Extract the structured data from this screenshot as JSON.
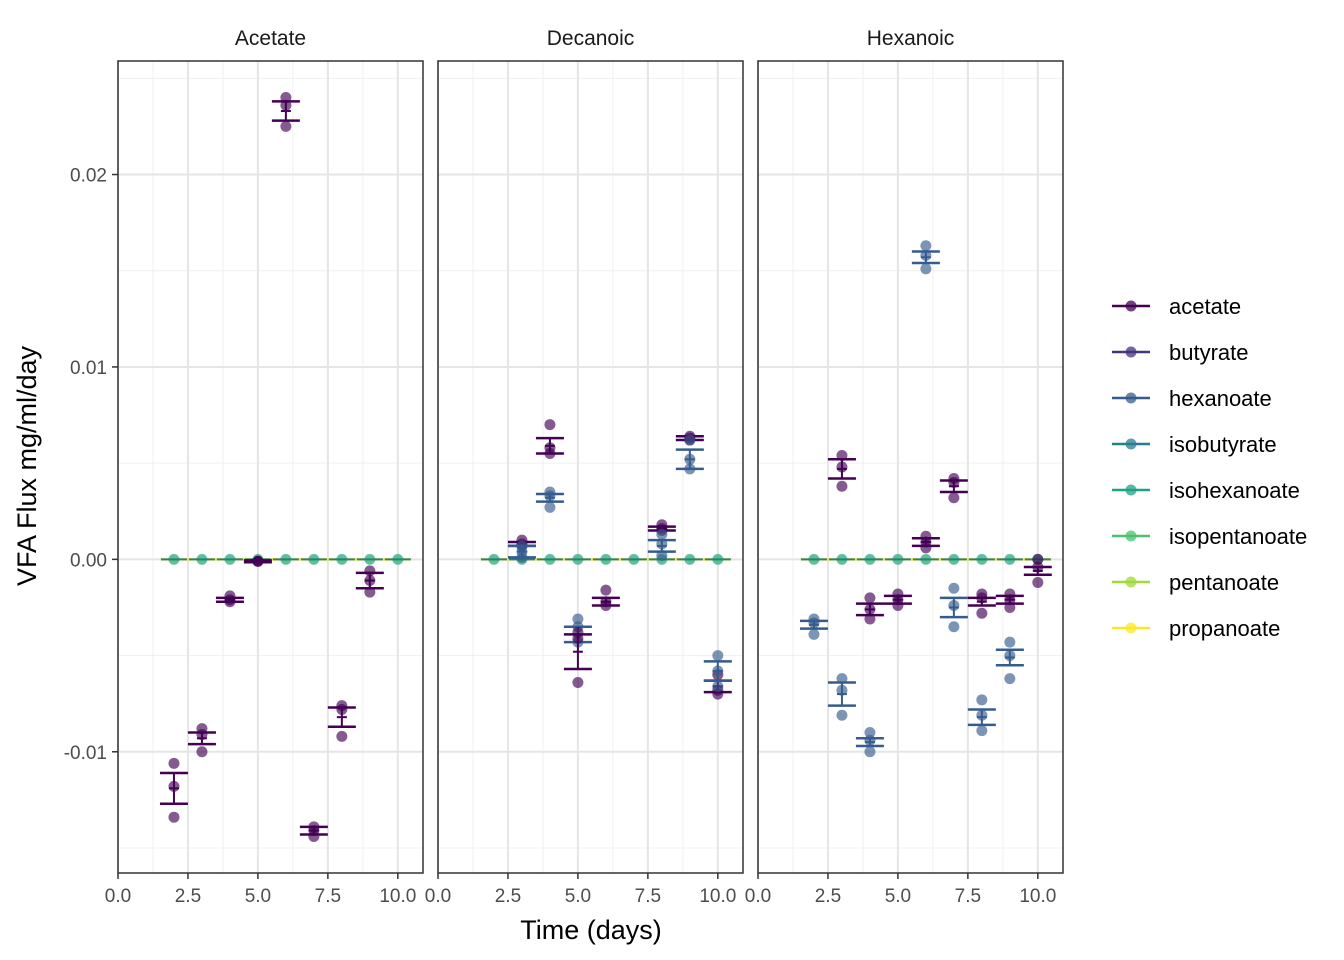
{
  "chart_data": {
    "type": "scatter",
    "xlabel": "Time (days)",
    "ylabel": "VFA Flux mg/ml/day",
    "xlim": [
      0,
      10.9
    ],
    "ylim": [
      -0.0163,
      0.0259
    ],
    "x_ticks": [
      0,
      2.5,
      5,
      7.5,
      10
    ],
    "x_tick_labels": [
      "0.0",
      "2.5",
      "5.0",
      "7.5",
      "10.0"
    ],
    "y_ticks": [
      -0.01,
      0,
      0.01,
      0.02
    ],
    "y_tick_labels": [
      "-0.01",
      "0.00",
      "0.01",
      "0.02"
    ],
    "grid": true,
    "legend_position": "right",
    "legend": [
      {
        "name": "acetate",
        "color": "#440154"
      },
      {
        "name": "butyrate",
        "color": "#46337E"
      },
      {
        "name": "hexanoate",
        "color": "#365C8D"
      },
      {
        "name": "isobutyrate",
        "color": "#277F8E"
      },
      {
        "name": "isohexanoate",
        "color": "#1FA187"
      },
      {
        "name": "isopentanoate",
        "color": "#4AC16D"
      },
      {
        "name": "pentanoate",
        "color": "#9FDA3A"
      },
      {
        "name": "propanoate",
        "color": "#FDE725"
      }
    ],
    "panels": [
      {
        "title": "Acetate",
        "zero_series_x": [
          2,
          3,
          4,
          5,
          6,
          7,
          8,
          9,
          10
        ],
        "series": [
          {
            "name": "acetate",
            "points": [
              {
                "x": 2,
                "mean": -0.0119,
                "se": 0.0008,
                "obs": [
                  -0.0106,
                  -0.0118,
                  -0.0134
                ]
              },
              {
                "x": 3,
                "mean": -0.0093,
                "se": 0.0003,
                "obs": [
                  -0.0088,
                  -0.0091,
                  -0.01
                ]
              },
              {
                "x": 4,
                "mean": -0.0021,
                "se": 0.0001,
                "obs": [
                  -0.0019,
                  -0.0021,
                  -0.0022
                ]
              },
              {
                "x": 5,
                "mean": -0.0001,
                "se": 5e-05,
                "obs": [
                  -0.0001,
                  -0.0001,
                  -0.0001
                ]
              },
              {
                "x": 6,
                "mean": 0.0233,
                "se": 0.0005,
                "obs": [
                  0.024,
                  0.0236,
                  0.0225
                ]
              },
              {
                "x": 7,
                "mean": -0.0141,
                "se": 0.0002,
                "obs": [
                  -0.0139,
                  -0.0141,
                  -0.0144
                ]
              },
              {
                "x": 8,
                "mean": -0.0082,
                "se": 0.0005,
                "obs": [
                  -0.0076,
                  -0.0078,
                  -0.0092
                ]
              },
              {
                "x": 9,
                "mean": -0.0011,
                "se": 0.0004,
                "obs": [
                  -0.0006,
                  -0.0011,
                  -0.0017
                ]
              }
            ]
          }
        ]
      },
      {
        "title": "Decanoic",
        "zero_series_x": [
          2,
          3,
          4,
          5,
          6,
          7,
          8,
          9,
          10
        ],
        "series": [
          {
            "name": "acetate",
            "points": [
              {
                "x": 3,
                "mean": 0.0008,
                "se": 0.0001,
                "obs": [
                  0.001,
                  0.0008,
                  0.0007
                ]
              },
              {
                "x": 4,
                "mean": 0.0059,
                "se": 0.0004,
                "obs": [
                  0.007,
                  0.0058,
                  0.0055
                ]
              },
              {
                "x": 6,
                "mean": -0.0022,
                "se": 0.0002,
                "obs": [
                  -0.0016,
                  -0.0022,
                  -0.0024
                ]
              },
              {
                "x": 8,
                "mean": 0.0016,
                "se": 0.0001,
                "obs": [
                  0.0018,
                  0.0016,
                  0.0015
                ]
              },
              {
                "x": 9,
                "mean": 0.0063,
                "se": 0.0001,
                "obs": [
                  0.0064,
                  0.0063,
                  0.0062
                ]
              },
              {
                "x": 10,
                "mean": -0.0066,
                "se": 0.0003,
                "obs": [
                  -0.006,
                  -0.0068,
                  -0.007
                ]
              }
            ]
          },
          {
            "name": "hexanoate",
            "points": [
              {
                "x": 3,
                "mean": 0.0004,
                "se": 0.0003,
                "obs": [
                  0.0007,
                  0.0004,
                  0.0001
                ]
              },
              {
                "x": 4,
                "mean": 0.0032,
                "se": 0.0002,
                "obs": [
                  0.0035,
                  0.0033,
                  0.0027
                ]
              },
              {
                "x": 5,
                "mean": -0.0039,
                "se": 0.0004,
                "obs": [
                  -0.0031,
                  -0.0035,
                  -0.0043
                ]
              },
              {
                "x": 8,
                "mean": 0.0007,
                "se": 0.0003,
                "obs": [
                  0.0013,
                  0.0008,
                  0.0002
                ]
              },
              {
                "x": 9,
                "mean": 0.0052,
                "se": 0.0005,
                "obs": [
                  0.0062,
                  0.0052,
                  0.0047
                ]
              },
              {
                "x": 10,
                "mean": -0.0058,
                "se": 0.0005,
                "obs": [
                  -0.005,
                  -0.0058,
                  -0.0066
                ]
              }
            ]
          },
          {
            "name": "acetate",
            "points": [
              {
                "x": 5,
                "mean": -0.0048,
                "se": 0.0009,
                "obs": [
                  -0.0038,
                  -0.0041,
                  -0.0064
                ]
              }
            ]
          }
        ]
      },
      {
        "title": "Hexanoic",
        "zero_series_x": [
          2,
          3,
          4,
          5,
          6,
          7,
          8,
          9,
          10
        ],
        "series": [
          {
            "name": "acetate",
            "points": [
              {
                "x": 3,
                "mean": 0.0047,
                "se": 0.0005,
                "obs": [
                  0.0054,
                  0.0048,
                  0.0038
                ]
              },
              {
                "x": 4,
                "mean": -0.0026,
                "se": 0.0003,
                "obs": [
                  -0.002,
                  -0.0026,
                  -0.0031
                ]
              },
              {
                "x": 5,
                "mean": -0.0021,
                "se": 0.0002,
                "obs": [
                  -0.0018,
                  -0.0021,
                  -0.0024
                ]
              },
              {
                "x": 6,
                "mean": 0.0009,
                "se": 0.0002,
                "obs": [
                  0.0012,
                  0.0009,
                  0.0006
                ]
              },
              {
                "x": 7,
                "mean": 0.0038,
                "se": 0.0003,
                "obs": [
                  0.0042,
                  0.004,
                  0.0032
                ]
              },
              {
                "x": 8,
                "mean": -0.0022,
                "se": 0.0002,
                "obs": [
                  -0.0018,
                  -0.002,
                  -0.0028
                ]
              },
              {
                "x": 9,
                "mean": -0.0021,
                "se": 0.0002,
                "obs": [
                  -0.0018,
                  -0.0021,
                  -0.0025
                ]
              },
              {
                "x": 10,
                "mean": -0.0006,
                "se": 0.0002,
                "obs": [
                  0.0,
                  -0.0004,
                  -0.0012
                ]
              }
            ]
          },
          {
            "name": "hexanoate",
            "points": [
              {
                "x": 2,
                "mean": -0.0034,
                "se": 0.0002,
                "obs": [
                  -0.0031,
                  -0.0033,
                  -0.0039
                ]
              },
              {
                "x": 3,
                "mean": -0.007,
                "se": 0.0006,
                "obs": [
                  -0.0062,
                  -0.0068,
                  -0.0081
                ]
              },
              {
                "x": 4,
                "mean": -0.0095,
                "se": 0.0002,
                "obs": [
                  -0.009,
                  -0.0094,
                  -0.01
                ]
              },
              {
                "x": 6,
                "mean": 0.0157,
                "se": 0.0003,
                "obs": [
                  0.0163,
                  0.0158,
                  0.0151
                ]
              },
              {
                "x": 7,
                "mean": -0.0025,
                "se": 0.0005,
                "obs": [
                  -0.0015,
                  -0.0024,
                  -0.0035
                ]
              },
              {
                "x": 8,
                "mean": -0.0082,
                "se": 0.0004,
                "obs": [
                  -0.0073,
                  -0.0081,
                  -0.0089
                ]
              },
              {
                "x": 9,
                "mean": -0.0051,
                "se": 0.0004,
                "obs": [
                  -0.0043,
                  -0.005,
                  -0.0062
                ]
              }
            ]
          }
        ]
      }
    ]
  }
}
